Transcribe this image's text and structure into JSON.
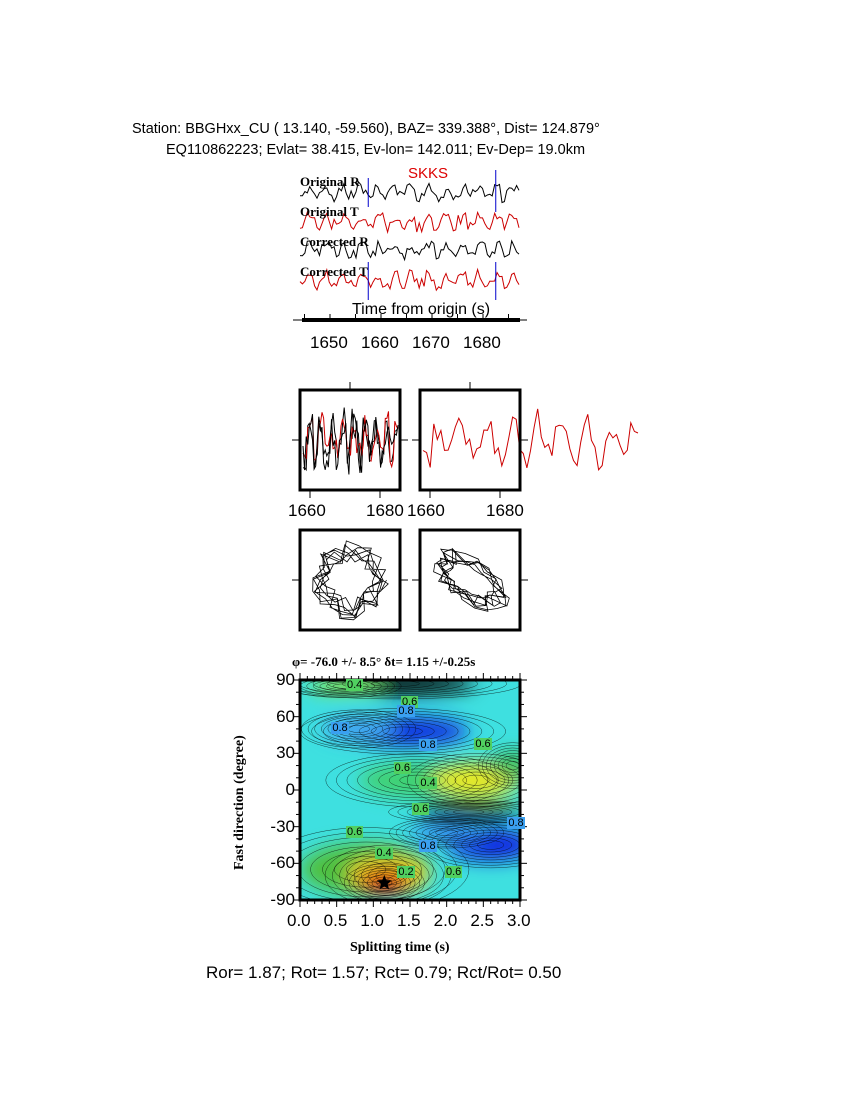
{
  "header": {
    "station_line": "Station: BBGHxx_CU (  13.140,  -59.560), BAZ=  339.388°, Dist=  124.879°",
    "event_line": "EQ110862223; Evlat=  38.415, Ev-lon= 142.011; Ev-Dep= 19.0km"
  },
  "traces": {
    "phase": "SKKS",
    "labels": [
      "Original R",
      "Original T",
      "Corrected R",
      "Corrected T"
    ],
    "colors": [
      "#000000",
      "#cc0000",
      "#000000",
      "#cc0000"
    ],
    "window_start_s": 1657.5,
    "window_end_s": 1682.5,
    "xlabel": "Time from origin (s)",
    "xticks": [
      "1650",
      "1660",
      "1670",
      "1680"
    ]
  },
  "waveform_panels": {
    "left_xticks": [
      "1660",
      "1680"
    ],
    "right_xticks": [
      "1660",
      "1680"
    ]
  },
  "chart_data": {
    "type": "heatmap",
    "title": "φ= -76.0 +/- 8.5° δt= 1.15 +/-0.25s",
    "xlabel": "Splitting time (s)",
    "ylabel": "Fast direction (degree)",
    "xlim": [
      0.0,
      3.0
    ],
    "ylim": [
      -90,
      90
    ],
    "xticks": [
      "0.0",
      "0.5",
      "1.0",
      "1.5",
      "2.0",
      "2.5",
      "3.0"
    ],
    "yticks": [
      "90",
      "60",
      "30",
      "0",
      "-30",
      "-60",
      "-90"
    ],
    "best_fit": {
      "dt": 1.15,
      "phi": -76.0
    },
    "contour_labels": [
      {
        "text": "0.4",
        "x": 0.75,
        "y": 85
      },
      {
        "text": "0.6",
        "x": 1.5,
        "y": 71
      },
      {
        "text": "0.8",
        "x": 1.45,
        "y": 64
      },
      {
        "text": "0.8",
        "x": 0.55,
        "y": 50
      },
      {
        "text": "0.8",
        "x": 1.75,
        "y": 36
      },
      {
        "text": "0.6",
        "x": 2.5,
        "y": 37
      },
      {
        "text": "0.6",
        "x": 1.4,
        "y": 17
      },
      {
        "text": "0.4",
        "x": 1.75,
        "y": 5
      },
      {
        "text": "0.6",
        "x": 1.65,
        "y": -16
      },
      {
        "text": "0.8",
        "x": 2.95,
        "y": -28
      },
      {
        "text": "0.6",
        "x": 0.75,
        "y": -35
      },
      {
        "text": "0.8",
        "x": 1.75,
        "y": -47
      },
      {
        "text": "0.4",
        "x": 1.15,
        "y": -52
      },
      {
        "text": "0.2",
        "x": 1.45,
        "y": -68
      },
      {
        "text": "0.6",
        "x": 2.1,
        "y": -68
      }
    ]
  },
  "footer": "Ror= 1.87; Rot= 1.57; Rct= 0.79; Rct/Rot= 0.50"
}
